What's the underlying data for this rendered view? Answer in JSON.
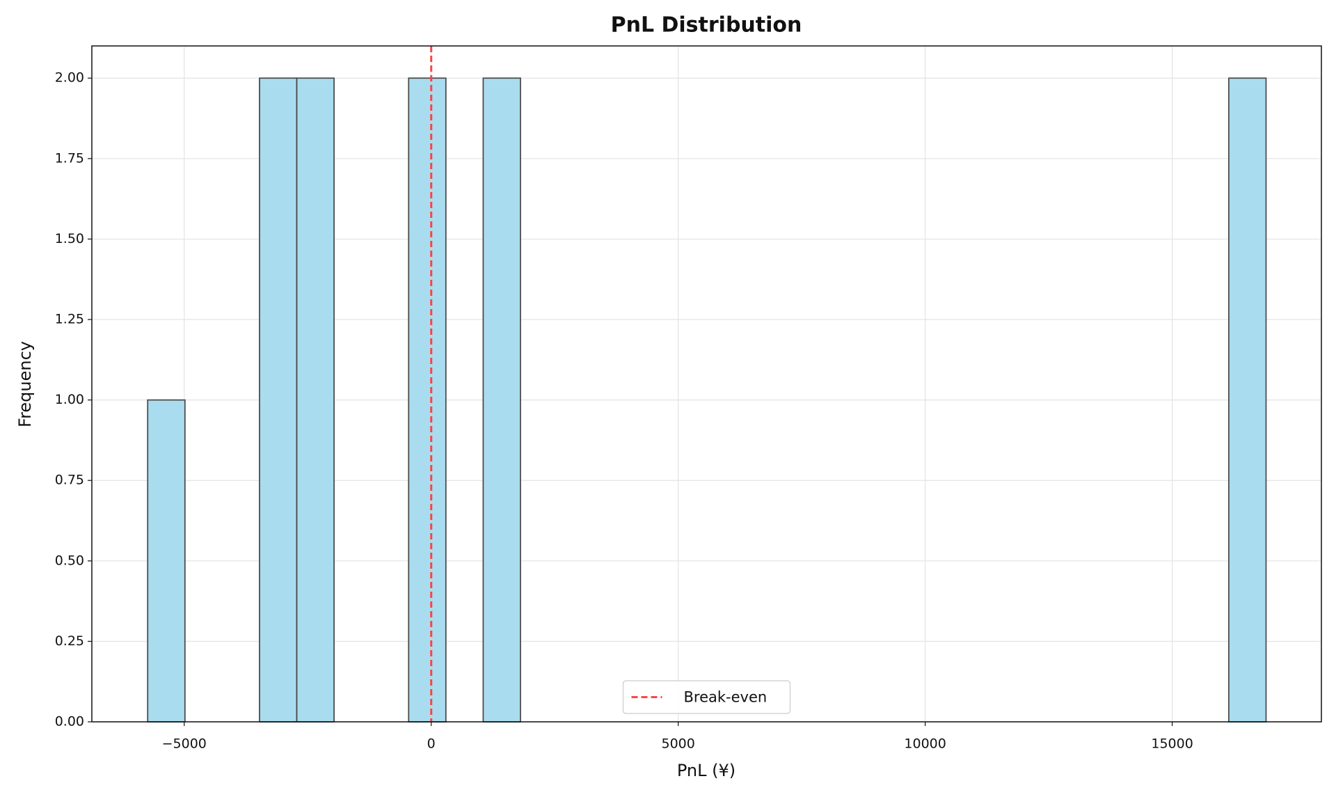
{
  "chart_data": {
    "type": "histogram",
    "title": "PnL Distribution",
    "x_label": "PnL (¥)",
    "y_label": "Frequency",
    "bins": [
      -5740,
      -4985.3,
      -4230.7,
      -3476,
      -2721.3,
      -1966.7,
      -1212,
      -457.3,
      297.3,
      1052,
      1806.7,
      2561.3,
      3316,
      4070.7,
      4825.3,
      5580,
      6334.7,
      7089.3,
      7844,
      8598.7,
      9353.3,
      10108,
      10862.7,
      11617.3,
      12372,
      13126.7,
      13881.3,
      14636,
      15390.7,
      16145.3,
      16900
    ],
    "values": [
      1,
      0,
      0,
      2,
      2,
      0,
      0,
      2,
      0,
      2,
      0,
      0,
      0,
      0,
      0,
      0,
      0,
      0,
      0,
      0,
      0,
      0,
      0,
      0,
      0,
      0,
      0,
      0,
      0,
      2
    ],
    "color": "#a9dcee",
    "edge_color": "#4d4d4d",
    "xlim": [
      -6870,
      18020
    ],
    "ylim": [
      0,
      2.1
    ],
    "xticks": [
      {
        "value": -5000,
        "label": "−5000"
      },
      0,
      5000,
      10000,
      15000
    ],
    "yticks": [
      {
        "value": 0,
        "label": "0.00"
      },
      {
        "value": 0.25,
        "label": "0.25"
      },
      {
        "value": 0.5,
        "label": "0.50"
      },
      {
        "value": 0.75,
        "label": "0.75"
      },
      {
        "value": 1,
        "label": "1.00"
      },
      {
        "value": 1.25,
        "label": "1.25"
      },
      {
        "value": 1.5,
        "label": "1.50"
      },
      {
        "value": 1.75,
        "label": "1.75"
      },
      {
        "value": 2,
        "label": "2.00"
      }
    ],
    "grid": true,
    "reference_line": {
      "value": 0,
      "label": "Break-even",
      "color": "#ff4444"
    },
    "legend": "lower center"
  }
}
